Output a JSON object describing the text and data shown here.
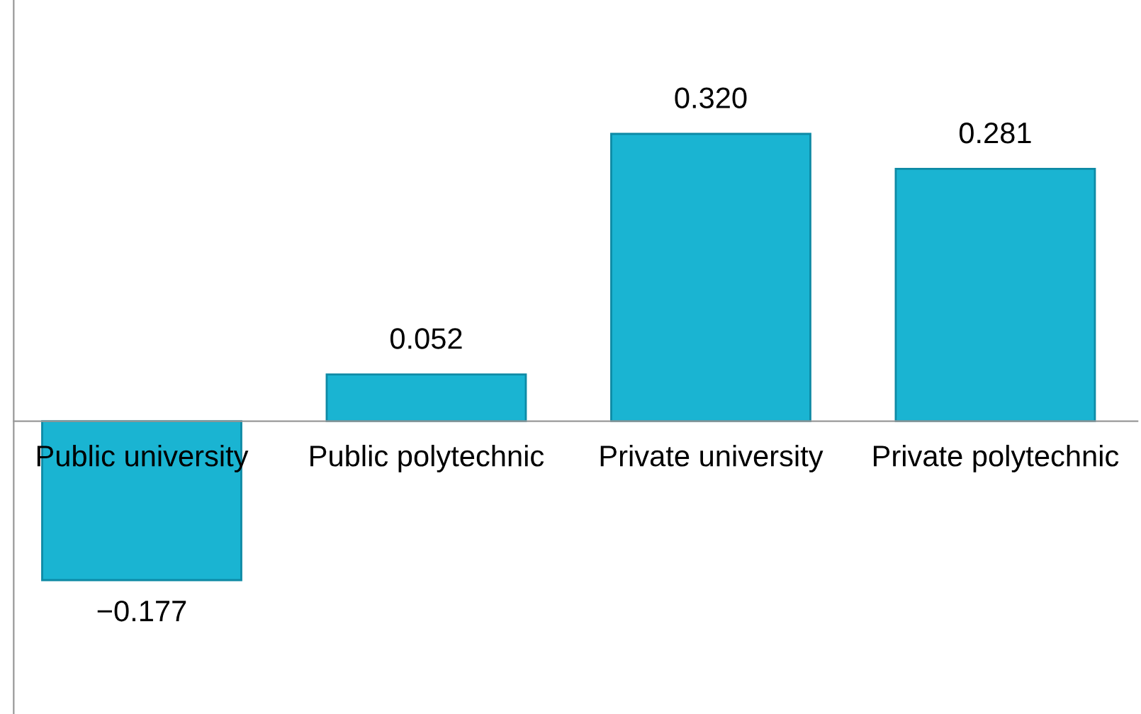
{
  "chart_data": {
    "type": "bar",
    "categories": [
      "Public university",
      "Public polytechnic",
      "Private university",
      "Private polytechnic"
    ],
    "values": [
      -0.177,
      0.052,
      0.32,
      0.281
    ],
    "value_labels": [
      "−0.177",
      "0.052",
      "0.320",
      "0.281"
    ],
    "color": "#1ab4d2",
    "grid": false,
    "legend": false
  }
}
